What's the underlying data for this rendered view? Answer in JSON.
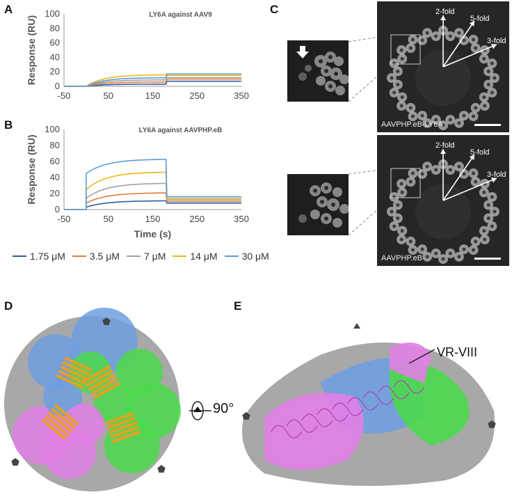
{
  "panels": {
    "A": "A",
    "B": "B",
    "C": "C",
    "D": "D",
    "E": "E"
  },
  "chart_data": [
    {
      "type": "line",
      "title": "LY6A against AAV9",
      "xlabel": "",
      "ylabel": "Response (RU)",
      "xlim": [
        -50,
        350
      ],
      "ylim": [
        0,
        100
      ],
      "xticks": [
        -50,
        50,
        150,
        250,
        350
      ],
      "yticks": [
        0,
        20,
        40,
        60,
        80,
        100
      ],
      "grid": false,
      "series": [
        {
          "name": "1.75 μM",
          "color": "#2f5aa8",
          "assoc_plateau": 3,
          "dissoc_level": 7
        },
        {
          "name": "3.5 μM",
          "color": "#e07b39",
          "assoc_plateau": 6,
          "dissoc_level": 10
        },
        {
          "name": "7 μM",
          "color": "#a0a0a0",
          "assoc_plateau": 9,
          "dissoc_level": 12
        },
        {
          "name": "14 μM",
          "color": "#f2b418",
          "assoc_plateau": 16,
          "dissoc_level": 15
        },
        {
          "name": "30 μM",
          "color": "#5b9bd5",
          "assoc_plateau": 12,
          "dissoc_level": 17
        }
      ]
    },
    {
      "type": "line",
      "title": "LY6A against AAVPHP.eB",
      "xlabel": "Time (s)",
      "ylabel": "Response (RU)",
      "xlim": [
        -50,
        350
      ],
      "ylim": [
        0,
        100
      ],
      "xticks": [
        -50,
        50,
        150,
        250,
        350
      ],
      "yticks": [
        0,
        20,
        40,
        60,
        80,
        100
      ],
      "grid": false,
      "series": [
        {
          "name": "1.75 μM",
          "color": "#2f5aa8",
          "jump": 3,
          "plateau": 11,
          "dissoc_level": 8
        },
        {
          "name": "3.5 μM",
          "color": "#e07b39",
          "jump": 8,
          "plateau": 21,
          "dissoc_level": 10
        },
        {
          "name": "7 μM",
          "color": "#a0a0a0",
          "jump": 14,
          "plateau": 33,
          "dissoc_level": 12
        },
        {
          "name": "14 μM",
          "color": "#f2b418",
          "jump": 25,
          "plateau": 47,
          "dissoc_level": 14
        },
        {
          "name": "30 μM",
          "color": "#5b9bd5",
          "jump": 45,
          "plateau": 63,
          "dissoc_level": 16
        }
      ]
    }
  ],
  "legend": [
    {
      "label": "1.75 μM",
      "color": "#2f5aa8"
    },
    {
      "label": "3.5 μM",
      "color": "#e07b39"
    },
    {
      "label": "7 μM",
      "color": "#a0a0a0"
    },
    {
      "label": "14 μM",
      "color": "#f2b418"
    },
    {
      "label": "30 μM",
      "color": "#5b9bd5"
    }
  ],
  "em": {
    "top_label": "AAVPHP.eB-LY6A",
    "bottom_label": "AAVPHP.eB",
    "fold_2": "2-fold",
    "fold_5": "5-fold",
    "fold_3": "3-fold"
  },
  "structure": {
    "rotation_label": "90°",
    "vr_label": "VR-VIII",
    "colors": {
      "grey": "#a8a8a8",
      "blue": "#6f9fe0",
      "green": "#4bd94b",
      "pink": "#e27ee6",
      "orange": "#e8a020"
    }
  }
}
